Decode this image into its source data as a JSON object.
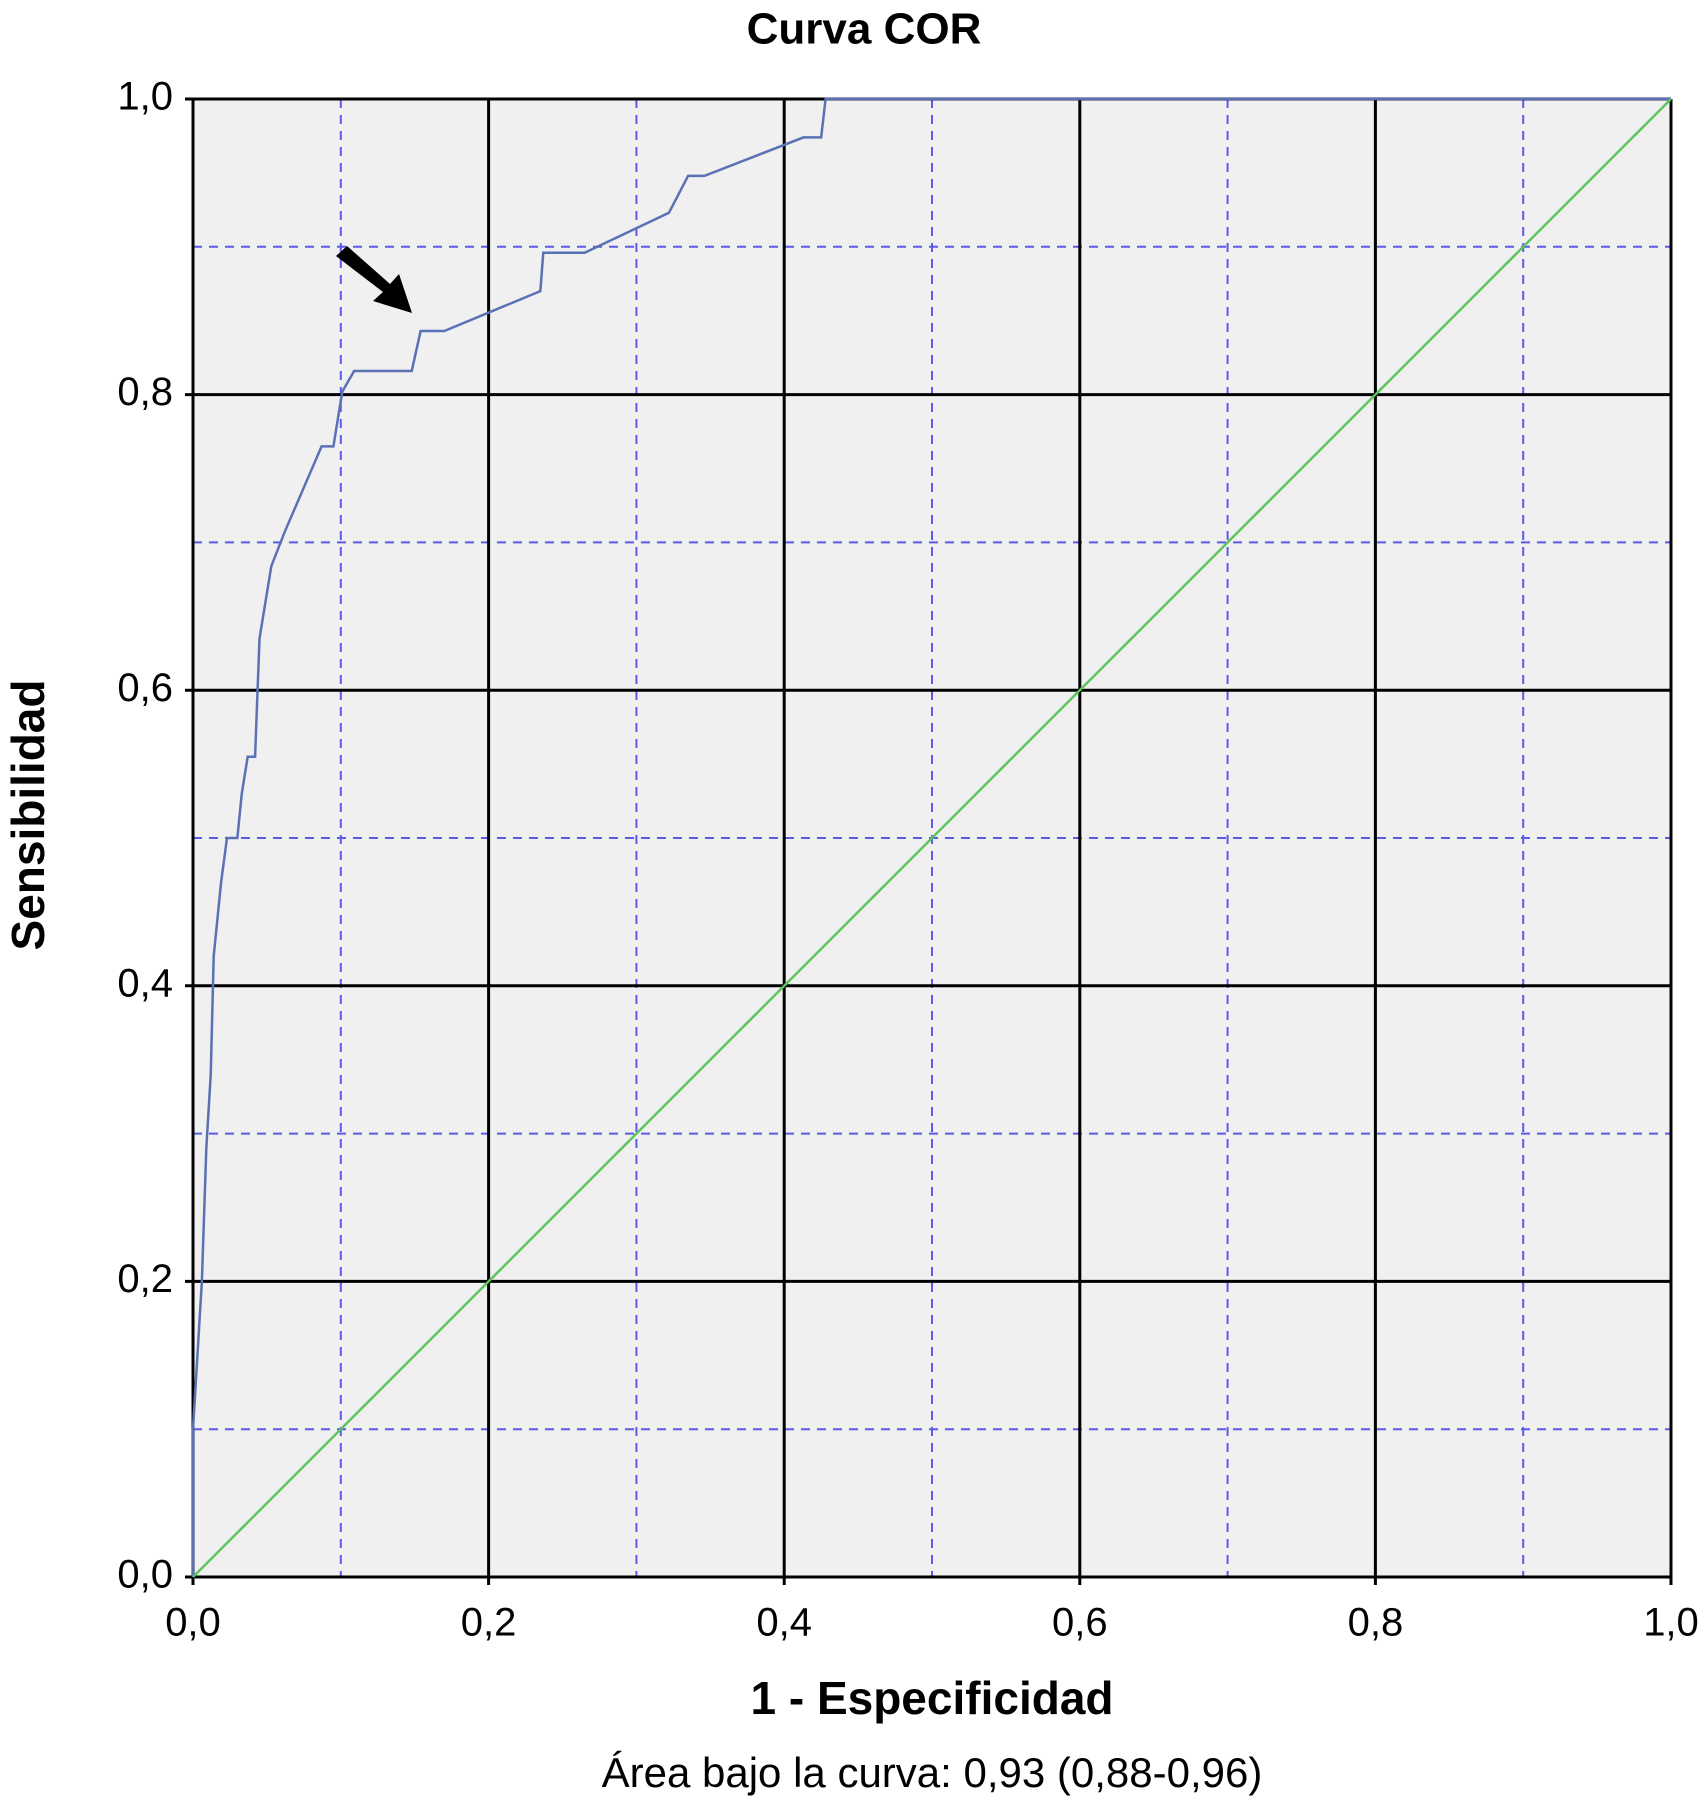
{
  "chart_data": {
    "type": "line",
    "title": "Curva COR",
    "x_label": "1 - Especificidad",
    "y_label": "Sensibilidad",
    "footnote": "Área bajo la curva: 0,93 (0,88-0,96)",
    "xlim": [
      0,
      1
    ],
    "ylim": [
      0,
      1
    ],
    "xticks": [
      {
        "value": 0,
        "label": "0,0"
      },
      {
        "value": 0.2,
        "label": "0,2"
      },
      {
        "value": 0.4,
        "label": "0,4"
      },
      {
        "value": 0.6,
        "label": "0,6"
      },
      {
        "value": 0.8,
        "label": "0,8"
      },
      {
        "value": 1,
        "label": "1,0"
      }
    ],
    "yticks": [
      {
        "value": 0,
        "label": "0,0"
      },
      {
        "value": 0.2,
        "label": "0,2"
      },
      {
        "value": 0.4,
        "label": "0,4"
      },
      {
        "value": 0.6,
        "label": "0,6"
      },
      {
        "value": 0.8,
        "label": "0,8"
      },
      {
        "value": 1,
        "label": "1,0"
      }
    ],
    "minor_grid": [
      0.1,
      0.3,
      0.5,
      0.7,
      0.9
    ],
    "grid": true,
    "background": "#f0f0f0",
    "series": [
      {
        "color": "#5a72b5",
        "x": [
          0,
          0,
          0.006,
          0.009,
          0.012,
          0.014,
          0.019,
          0.023,
          0.03,
          0.033,
          0.037,
          0.042,
          0.045,
          0.053,
          0.062,
          0.087,
          0.095,
          0.101,
          0.109,
          0.148,
          0.154,
          0.17,
          0.235,
          0.237,
          0.265,
          0.322,
          0.335,
          0.346,
          0.413,
          0.425,
          0.428,
          1
        ],
        "values": [
          0,
          0.1,
          0.2,
          0.29,
          0.34,
          0.42,
          0.47,
          0.5,
          0.5,
          0.53,
          0.555,
          0.555,
          0.635,
          0.684,
          0.707,
          0.765,
          0.765,
          0.802,
          0.816,
          0.816,
          0.843,
          0.843,
          0.87,
          0.896,
          0.896,
          0.923,
          0.948,
          0.948,
          0.974,
          0.974,
          1,
          1
        ]
      },
      {
        "color": "#5cc45c",
        "x": [
          0,
          1
        ],
        "values": [
          0,
          1
        ]
      }
    ]
  }
}
